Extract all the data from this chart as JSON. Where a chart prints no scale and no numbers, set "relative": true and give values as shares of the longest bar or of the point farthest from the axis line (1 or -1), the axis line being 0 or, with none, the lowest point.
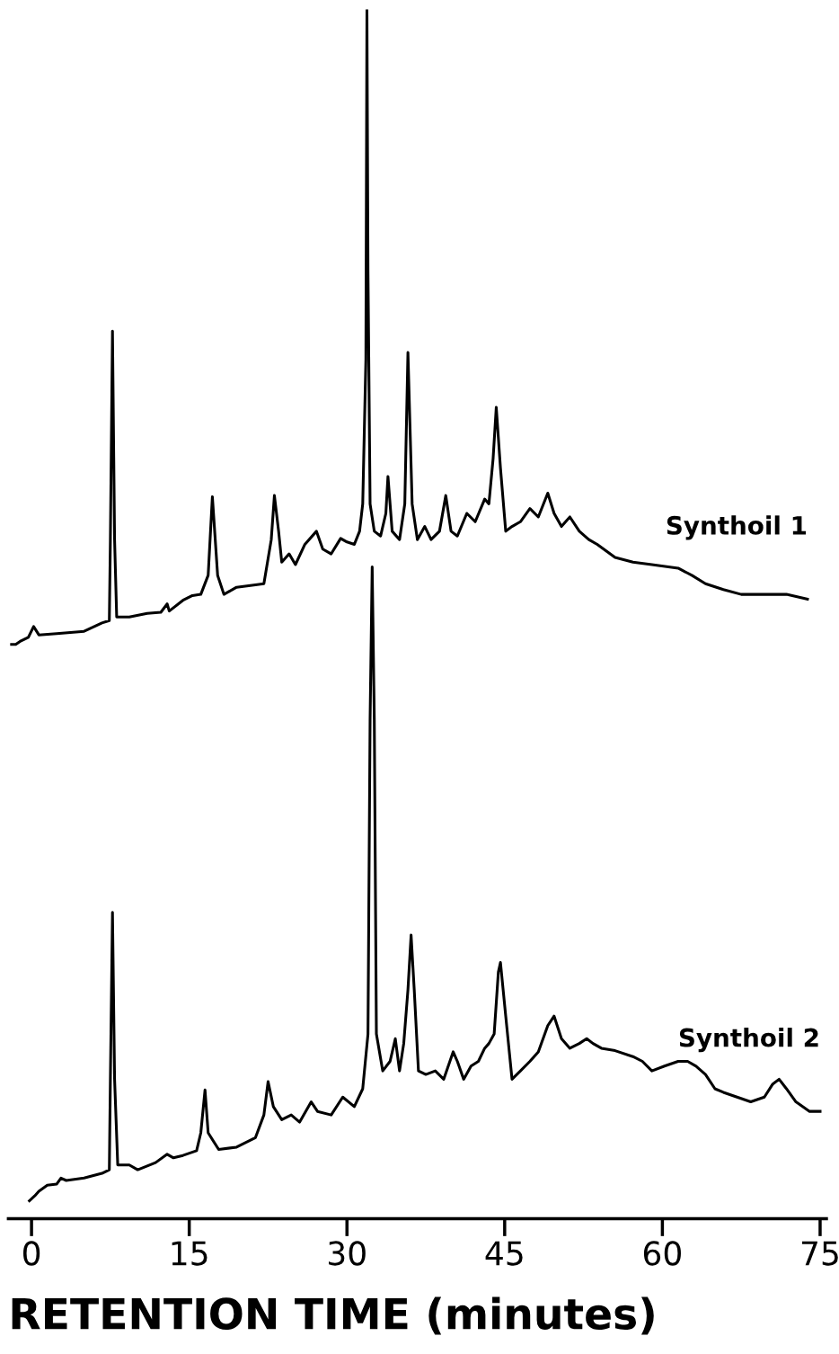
{
  "chart_data": {
    "type": "line",
    "relative": true,
    "xlabel": "RETENTION TIME (minutes)",
    "xlim": [
      -2.2,
      75.6
    ],
    "xticks": [
      0,
      15,
      30,
      45,
      60,
      75
    ],
    "grid": false,
    "legend": false,
    "marker": "none",
    "line_style": "solid",
    "series": [
      {
        "name": "Synthoil 1",
        "color": "#000000",
        "x": [
          -1.9,
          -1.5,
          -1.0,
          -0.3,
          0.2,
          0.7,
          2.4,
          5.0,
          6.7,
          7.4,
          7.5,
          7.7,
          7.9,
          8.1,
          9.3,
          11.0,
          12.3,
          12.9,
          13.1,
          14.4,
          15.3,
          16.1,
          16.8,
          17.2,
          17.7,
          18.3,
          19.5,
          21.3,
          22.1,
          22.8,
          23.1,
          23.5,
          23.8,
          24.5,
          25.1,
          26.0,
          27.1,
          27.7,
          28.5,
          29.4,
          30.0,
          30.7,
          31.2,
          31.5,
          31.8,
          31.9,
          32.0,
          32.2,
          32.6,
          33.2,
          33.7,
          33.9,
          34.3,
          35.0,
          35.5,
          35.8,
          36.2,
          36.7,
          37.4,
          38.0,
          38.8,
          39.4,
          39.9,
          40.5,
          41.4,
          42.2,
          43.1,
          43.5,
          43.9,
          44.2,
          44.6,
          45.1,
          45.7,
          46.5,
          47.4,
          48.2,
          49.1,
          49.7,
          50.4,
          51.2,
          52.1,
          53.0,
          53.8,
          55.5,
          57.2,
          59.0,
          61.5,
          62.8,
          64.1,
          65.8,
          67.5,
          69.2,
          71.8,
          73.8
        ],
        "values": [
          0.467,
          0.467,
          0.47,
          0.473,
          0.482,
          0.475,
          0.476,
          0.478,
          0.485,
          0.487,
          0.555,
          0.73,
          0.555,
          0.49,
          0.49,
          0.493,
          0.494,
          0.501,
          0.495,
          0.504,
          0.508,
          0.509,
          0.525,
          0.591,
          0.525,
          0.509,
          0.515,
          0.517,
          0.518,
          0.555,
          0.592,
          0.562,
          0.536,
          0.543,
          0.534,
          0.551,
          0.562,
          0.547,
          0.543,
          0.556,
          0.553,
          0.551,
          0.562,
          0.585,
          0.706,
          1.0,
          0.781,
          0.585,
          0.562,
          0.558,
          0.577,
          0.608,
          0.562,
          0.555,
          0.585,
          0.712,
          0.585,
          0.555,
          0.566,
          0.555,
          0.562,
          0.592,
          0.562,
          0.558,
          0.577,
          0.57,
          0.589,
          0.585,
          0.623,
          0.666,
          0.615,
          0.562,
          0.566,
          0.57,
          0.581,
          0.574,
          0.594,
          0.577,
          0.566,
          0.574,
          0.562,
          0.555,
          0.551,
          0.54,
          0.536,
          0.534,
          0.531,
          0.525,
          0.518,
          0.513,
          0.509,
          0.509,
          0.509,
          0.505
        ]
      },
      {
        "name": "Synthoil 2",
        "color": "#000000",
        "x": [
          -0.2,
          0.3,
          0.7,
          1.5,
          2.4,
          2.8,
          3.3,
          5.0,
          6.7,
          7.4,
          7.5,
          7.7,
          7.9,
          8.2,
          9.3,
          10.1,
          11.8,
          12.9,
          13.5,
          14.4,
          15.7,
          16.1,
          16.5,
          16.8,
          17.8,
          19.5,
          21.3,
          22.1,
          22.5,
          23.0,
          23.8,
          24.7,
          25.5,
          26.6,
          27.2,
          28.5,
          29.6,
          30.7,
          31.5,
          32.0,
          32.2,
          32.4,
          32.6,
          32.8,
          33.4,
          34.1,
          34.6,
          35.0,
          35.4,
          35.8,
          36.1,
          36.4,
          36.8,
          37.5,
          38.4,
          39.2,
          40.1,
          40.5,
          41.1,
          41.8,
          42.5,
          43.1,
          43.5,
          44.0,
          44.4,
          44.6,
          45.1,
          45.7,
          46.5,
          47.4,
          48.2,
          49.1,
          49.7,
          50.4,
          51.2,
          52.1,
          52.8,
          53.4,
          54.2,
          55.5,
          57.2,
          58.1,
          59.0,
          60.2,
          61.5,
          62.4,
          63.2,
          64.1,
          65.0,
          65.8,
          67.1,
          68.4,
          69.7,
          70.5,
          71.1,
          71.8,
          72.7,
          74.0,
          75.0
        ],
        "values": [
          0,
          0.004,
          0.008,
          0.013,
          0.014,
          0.019,
          0.017,
          0.019,
          0.023,
          0.026,
          0.102,
          0.242,
          0.102,
          0.03,
          0.03,
          0.026,
          0.032,
          0.039,
          0.036,
          0.038,
          0.042,
          0.057,
          0.093,
          0.057,
          0.043,
          0.045,
          0.053,
          0.072,
          0.1,
          0.079,
          0.068,
          0.072,
          0.066,
          0.083,
          0.075,
          0.072,
          0.087,
          0.079,
          0.094,
          0.14,
          0.404,
          0.532,
          0.404,
          0.14,
          0.109,
          0.117,
          0.136,
          0.109,
          0.132,
          0.177,
          0.223,
          0.177,
          0.109,
          0.106,
          0.109,
          0.102,
          0.125,
          0.117,
          0.102,
          0.113,
          0.117,
          0.128,
          0.132,
          0.14,
          0.192,
          0.2,
          0.155,
          0.102,
          0.109,
          0.117,
          0.125,
          0.147,
          0.155,
          0.136,
          0.128,
          0.132,
          0.136,
          0.132,
          0.128,
          0.126,
          0.121,
          0.117,
          0.109,
          0.113,
          0.117,
          0.117,
          0.113,
          0.106,
          0.094,
          0.091,
          0.087,
          0.083,
          0.087,
          0.098,
          0.102,
          0.094,
          0.083,
          0.075,
          0.075
        ]
      }
    ]
  }
}
